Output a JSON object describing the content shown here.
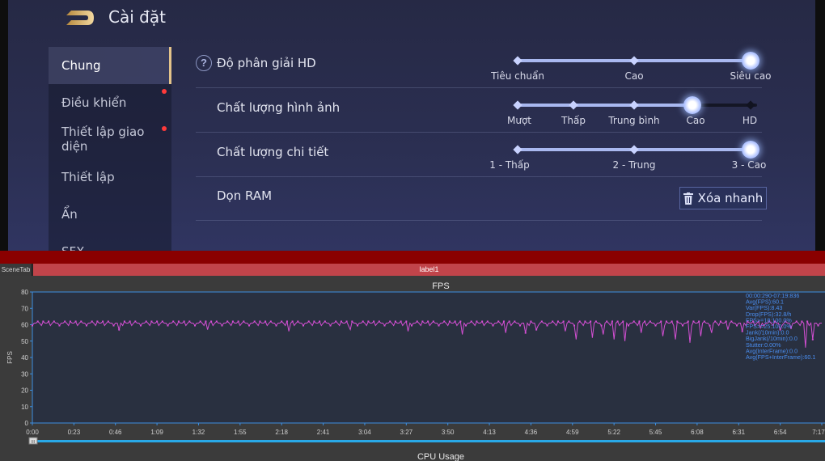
{
  "game": {
    "title": "Cài đặt",
    "sidebar": [
      {
        "label": "Chung",
        "active": true,
        "dot": false
      },
      {
        "label": "Điều khiển",
        "active": false,
        "dot": true
      },
      {
        "label": "Thiết lập giao diện",
        "active": false,
        "dot": true
      },
      {
        "label": "Thiết lập",
        "active": false,
        "dot": false
      },
      {
        "label": "Ẩn",
        "active": false,
        "dot": false
      },
      {
        "label": "SFX",
        "active": false,
        "dot": false
      }
    ],
    "settings": {
      "resolution": {
        "label": "Độ phân giải HD",
        "options": [
          "Tiêu chuẩn",
          "Cao",
          "Siêu cao"
        ],
        "selected": 2
      },
      "image_quality": {
        "label": "Chất lượng hình ảnh",
        "options": [
          "Mượt",
          "Thấp",
          "Trung bình",
          "Cao",
          "HD"
        ],
        "selected": 3
      },
      "detail_quality": {
        "label": "Chất lượng chi tiết",
        "options": [
          "1 - Thấp",
          "2 - Trung",
          "3 - Cao"
        ],
        "selected": 2
      },
      "ram": {
        "label": "Dọn RAM",
        "button": "Xóa nhanh"
      }
    }
  },
  "profiler": {
    "scene_tab": "SceneTab",
    "label_tab": "label1",
    "next_chart_title": "CPU Usage",
    "slider_handle": "III",
    "stats": [
      "00:00:290-07:19:836",
      "Avg(FPS):60.1",
      "Var(FPS):8.43",
      "Drop(FPS):32.8/h",
      "FPS>=18:100.0%",
      "FPS>=25:100.0%",
      "Jank(/10min):0.0",
      "BigJank(/10min):0.0",
      "Stutter:0.00%",
      "Avg(InterFrame):0.0",
      "Avg(FPS+InterFrame):60.1"
    ]
  },
  "colors": {
    "fps_line": "#d34fd3",
    "axis_line": "#3d8ee0",
    "stats_text": "#4a8ef0",
    "timeline": "#29a9e8"
  },
  "chart_data": {
    "type": "line",
    "title": "FPS",
    "ylabel": "FPS",
    "xlabel": "",
    "ylim": [
      0,
      80
    ],
    "yticks": [
      0,
      10,
      20,
      30,
      40,
      50,
      60,
      70,
      80
    ],
    "xticks": [
      "0:00",
      "0:23",
      "0:46",
      "1:09",
      "1:32",
      "1:55",
      "2:18",
      "2:41",
      "3:04",
      "3:27",
      "3:50",
      "4:13",
      "4:36",
      "4:59",
      "5:22",
      "5:45",
      "6:08",
      "6:31",
      "6:54",
      "7:17"
    ],
    "xlim_seconds": [
      0,
      437
    ],
    "grid": false,
    "series": [
      {
        "baseline": 61,
        "dips": [
          {
            "t": 48,
            "v": 57
          },
          {
            "t": 97,
            "v": 57
          },
          {
            "t": 142,
            "v": 56
          },
          {
            "t": 176,
            "v": 57
          },
          {
            "t": 208,
            "v": 56
          },
          {
            "t": 238,
            "v": 54
          },
          {
            "t": 262,
            "v": 55
          },
          {
            "t": 273,
            "v": 55
          },
          {
            "t": 279,
            "v": 57
          },
          {
            "t": 295,
            "v": 56
          },
          {
            "t": 301,
            "v": 51
          },
          {
            "t": 310,
            "v": 52
          },
          {
            "t": 316,
            "v": 54
          },
          {
            "t": 322,
            "v": 51
          },
          {
            "t": 328,
            "v": 50
          },
          {
            "t": 337,
            "v": 55
          },
          {
            "t": 349,
            "v": 53
          },
          {
            "t": 356,
            "v": 51
          },
          {
            "t": 364,
            "v": 49
          },
          {
            "t": 370,
            "v": 53
          },
          {
            "t": 376,
            "v": 55
          },
          {
            "t": 385,
            "v": 57
          },
          {
            "t": 393,
            "v": 56
          },
          {
            "t": 403,
            "v": 58
          },
          {
            "t": 414,
            "v": 57
          },
          {
            "t": 420,
            "v": 58
          },
          {
            "t": 428,
            "v": 46
          },
          {
            "t": 432,
            "v": 51
          }
        ]
      }
    ]
  }
}
